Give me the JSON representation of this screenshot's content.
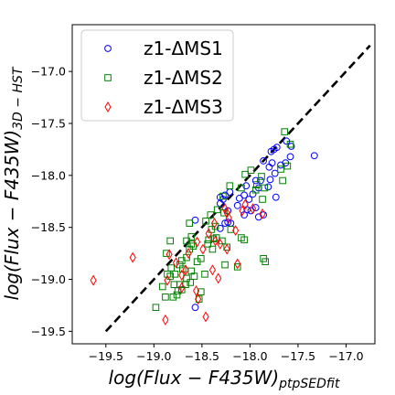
{
  "chart_data": {
    "type": "scatter",
    "xlabel": "log(Flux − F435W)",
    "xlabel_sub": "ptpSEDfit",
    "ylabel": "log(Flux − F435W)",
    "ylabel_sub": "3D − HST",
    "xlim": [
      -19.85,
      -16.7
    ],
    "ylim": [
      -19.62,
      -16.55
    ],
    "x_ticks": [
      -19.5,
      -19.0,
      -18.5,
      -18.0,
      -17.5,
      -17.0
    ],
    "x_tick_labels": [
      "−19.5",
      "−19.0",
      "−18.5",
      "−18.0",
      "−17.5",
      "−17.0"
    ],
    "y_ticks": [
      -19.5,
      -19.0,
      -18.5,
      -18.0,
      -17.5,
      -17.0
    ],
    "y_tick_labels": [
      "−19.5",
      "−19.0",
      "−18.5",
      "−18.0",
      "−17.5",
      "−17.0"
    ],
    "grid": false,
    "legend_position": "top-left",
    "reference_line": {
      "style": "dashed",
      "color": "#000000",
      "x": [
        -19.5,
        -16.75
      ],
      "y": [
        -19.5,
        -16.75
      ]
    },
    "series": [
      {
        "name": "z1-ΔMS1",
        "marker": "circle",
        "color": "#0000ff",
        "points": [
          [
            -17.62,
            -17.67
          ],
          [
            -17.57,
            -17.72
          ],
          [
            -17.33,
            -17.81
          ],
          [
            -17.72,
            -17.73
          ],
          [
            -17.75,
            -17.75
          ],
          [
            -17.78,
            -17.77
          ],
          [
            -17.58,
            -17.82
          ],
          [
            -17.63,
            -17.88
          ],
          [
            -17.68,
            -17.9
          ],
          [
            -17.77,
            -17.88
          ],
          [
            -17.8,
            -17.92
          ],
          [
            -17.86,
            -17.86
          ],
          [
            -17.74,
            -17.98
          ],
          [
            -17.79,
            -18.04
          ],
          [
            -17.89,
            -18.05
          ],
          [
            -17.94,
            -18.05
          ],
          [
            -17.81,
            -18.11
          ],
          [
            -17.91,
            -18.12
          ],
          [
            -17.97,
            -18.18
          ],
          [
            -18.01,
            -18.23
          ],
          [
            -18.06,
            -18.19
          ],
          [
            -18.11,
            -18.22
          ],
          [
            -18.21,
            -18.16
          ],
          [
            -18.26,
            -18.19
          ],
          [
            -18.28,
            -18.23
          ],
          [
            -18.31,
            -18.21
          ],
          [
            -18.31,
            -18.27
          ],
          [
            -17.94,
            -18.31
          ],
          [
            -17.99,
            -18.34
          ],
          [
            -18.03,
            -18.33
          ],
          [
            -18.06,
            -18.38
          ],
          [
            -17.91,
            -18.4
          ],
          [
            -17.86,
            -18.38
          ],
          [
            -18.13,
            -18.29
          ],
          [
            -18.23,
            -18.34
          ],
          [
            -18.23,
            -18.45
          ],
          [
            -18.2,
            -18.46
          ],
          [
            -18.57,
            -18.43
          ],
          [
            -18.26,
            -18.46
          ],
          [
            -18.31,
            -18.51
          ],
          [
            -18.04,
            -18.1
          ],
          [
            -17.73,
            -18.21
          ],
          [
            -18.57,
            -19.27
          ]
        ]
      },
      {
        "name": "z1-ΔMS2",
        "marker": "square",
        "color": "#008000",
        "points": [
          [
            -17.64,
            -17.58
          ],
          [
            -17.58,
            -17.7
          ],
          [
            -17.61,
            -17.91
          ],
          [
            -17.68,
            -17.94
          ],
          [
            -17.66,
            -18.05
          ],
          [
            -17.99,
            -17.95
          ],
          [
            -18.05,
            -17.99
          ],
          [
            -17.88,
            -18.01
          ],
          [
            -17.85,
            -18.12
          ],
          [
            -17.87,
            -18.23
          ],
          [
            -17.93,
            -18.09
          ],
          [
            -17.94,
            -18.14
          ],
          [
            -18.09,
            -18.12
          ],
          [
            -18.21,
            -18.1
          ],
          [
            -18.28,
            -18.2
          ],
          [
            -18.27,
            -18.36
          ],
          [
            -18.34,
            -18.33
          ],
          [
            -18.41,
            -18.38
          ],
          [
            -18.36,
            -18.49
          ],
          [
            -18.46,
            -18.44
          ],
          [
            -18.4,
            -18.52
          ],
          [
            -18.2,
            -18.52
          ],
          [
            -18.09,
            -18.6
          ],
          [
            -18.06,
            -18.62
          ],
          [
            -18.29,
            -18.63
          ],
          [
            -18.35,
            -18.6
          ],
          [
            -18.38,
            -18.61
          ],
          [
            -18.43,
            -18.62
          ],
          [
            -18.63,
            -18.46
          ],
          [
            -18.61,
            -18.59
          ],
          [
            -18.66,
            -18.63
          ],
          [
            -18.61,
            -18.66
          ],
          [
            -18.59,
            -18.68
          ],
          [
            -18.63,
            -18.71
          ],
          [
            -18.39,
            -18.71
          ],
          [
            -18.24,
            -18.69
          ],
          [
            -18.83,
            -18.63
          ],
          [
            -18.87,
            -18.75
          ],
          [
            -18.66,
            -18.79
          ],
          [
            -18.71,
            -18.82
          ],
          [
            -18.51,
            -18.8
          ],
          [
            -18.55,
            -18.83
          ],
          [
            -18.26,
            -18.86
          ],
          [
            -18.13,
            -18.88
          ],
          [
            -17.86,
            -18.8
          ],
          [
            -17.84,
            -18.83
          ],
          [
            -18.73,
            -18.86
          ],
          [
            -18.82,
            -18.89
          ],
          [
            -18.61,
            -18.92
          ],
          [
            -18.58,
            -18.97
          ],
          [
            -18.66,
            -18.99
          ],
          [
            -18.62,
            -19.03
          ],
          [
            -18.67,
            -19.05
          ],
          [
            -18.73,
            -19.05
          ],
          [
            -18.78,
            -18.95
          ],
          [
            -18.83,
            -18.97
          ],
          [
            -18.86,
            -18.95
          ],
          [
            -18.79,
            -19.05
          ],
          [
            -18.91,
            -19.07
          ],
          [
            -18.71,
            -19.1
          ],
          [
            -18.75,
            -19.11
          ],
          [
            -18.76,
            -19.15
          ],
          [
            -18.8,
            -19.17
          ],
          [
            -18.88,
            -19.17
          ],
          [
            -18.51,
            -19.12
          ],
          [
            -18.53,
            -19.19
          ],
          [
            -18.47,
            -18.95
          ],
          [
            -18.98,
            -19.27
          ],
          [
            -18.44,
            -18.66
          ],
          [
            -18.7,
            -18.9
          ]
        ]
      },
      {
        "name": "z1-ΔMS3",
        "marker": "diamond",
        "color": "#ff0000",
        "points": [
          [
            -19.63,
            -19.01
          ],
          [
            -19.22,
            -18.79
          ],
          [
            -18.84,
            -18.76
          ],
          [
            -18.64,
            -18.75
          ],
          [
            -18.77,
            -18.84
          ],
          [
            -18.67,
            -18.91
          ],
          [
            -18.71,
            -18.96
          ],
          [
            -18.86,
            -19.01
          ],
          [
            -18.71,
            -19.08
          ],
          [
            -18.56,
            -19.11
          ],
          [
            -18.54,
            -19.19
          ],
          [
            -18.88,
            -19.39
          ],
          [
            -18.46,
            -19.36
          ],
          [
            -18.33,
            -18.99
          ],
          [
            -18.39,
            -18.91
          ],
          [
            -18.55,
            -18.64
          ],
          [
            -18.43,
            -18.56
          ],
          [
            -18.36,
            -18.63
          ],
          [
            -18.31,
            -18.66
          ],
          [
            -18.24,
            -18.71
          ],
          [
            -18.37,
            -18.46
          ],
          [
            -18.24,
            -18.36
          ],
          [
            -18.26,
            -18.32
          ],
          [
            -18.15,
            -18.53
          ],
          [
            -18.13,
            -18.85
          ],
          [
            -18.22,
            -18.41
          ],
          [
            -18.05,
            -18.28
          ],
          [
            -17.97,
            -18.32
          ],
          [
            -17.87,
            -18.37
          ],
          [
            -18.08,
            -18.34
          ],
          [
            -18.49,
            -18.71
          ]
        ]
      }
    ]
  }
}
